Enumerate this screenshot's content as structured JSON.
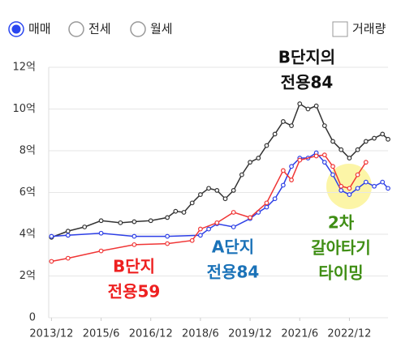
{
  "controls": {
    "radios": [
      {
        "label": "매매",
        "selected": true
      },
      {
        "label": "전세",
        "selected": false
      },
      {
        "label": "월세",
        "selected": false
      }
    ],
    "checkbox": {
      "label": "거래량",
      "checked": false
    }
  },
  "chart_data": {
    "type": "line",
    "xlim": [
      "2013/11",
      "2024/2"
    ],
    "xticks": [
      "2013/12",
      "2015/6",
      "2016/12",
      "2018/6",
      "2019/12",
      "2021/6",
      "2022/12"
    ],
    "ylim": [
      0,
      12
    ],
    "yticks": [
      0,
      {
        "value": 2,
        "label": "2억"
      },
      {
        "value": 4,
        "label": "4억"
      },
      {
        "value": 6,
        "label": "6억"
      },
      {
        "value": 8,
        "label": "8억"
      },
      {
        "value": 10,
        "label": "10억"
      },
      {
        "value": 12,
        "label": "12억"
      }
    ],
    "grid": true,
    "series": [
      {
        "name": "B단지의 전용84",
        "color": "#333333",
        "label_color": "#111111",
        "label_lines": [
          "B단지의",
          "전용84"
        ],
        "x": [
          "2013/12",
          "2014/6",
          "2014/12",
          "2015/6",
          "2016/1",
          "2016/6",
          "2016/12",
          "2017/6",
          "2017/9",
          "2017/12",
          "2018/3",
          "2018/6",
          "2018/9",
          "2018/12",
          "2019/3",
          "2019/6",
          "2019/9",
          "2019/12",
          "2020/3",
          "2020/6",
          "2020/9",
          "2020/12",
          "2021/3",
          "2021/6",
          "2021/9",
          "2021/12",
          "2022/3",
          "2022/6",
          "2022/9",
          "2022/12",
          "2023/3",
          "2023/6",
          "2023/9",
          "2023/12",
          "2024/2"
        ],
        "values": [
          3.85,
          4.15,
          4.35,
          4.65,
          4.55,
          4.6,
          4.65,
          4.8,
          5.1,
          5.05,
          5.5,
          5.9,
          6.2,
          6.1,
          5.7,
          6.1,
          6.85,
          7.45,
          7.65,
          8.25,
          8.8,
          9.4,
          9.2,
          10.25,
          10.0,
          10.15,
          9.2,
          8.45,
          8.05,
          7.65,
          8.05,
          8.45,
          8.6,
          8.8,
          8.55
        ]
      },
      {
        "name": "A단지 전용84",
        "color": "#2d3fe6",
        "label_color": "#1a72b8",
        "label_lines": [
          "A단지",
          "전용84"
        ],
        "x": [
          "2013/12",
          "2014/6",
          "2015/6",
          "2016/6",
          "2017/6",
          "2018/6",
          "2018/9",
          "2018/12",
          "2019/6",
          "2019/12",
          "2020/3",
          "2020/6",
          "2020/9",
          "2020/12",
          "2021/3",
          "2021/6",
          "2021/9",
          "2021/12",
          "2022/3",
          "2022/6",
          "2022/9",
          "2022/12",
          "2023/3",
          "2023/6",
          "2023/9",
          "2023/12",
          "2024/2"
        ],
        "values": [
          3.9,
          3.95,
          4.05,
          3.9,
          3.9,
          3.95,
          4.25,
          4.5,
          4.35,
          4.75,
          5.05,
          5.3,
          5.7,
          6.35,
          7.25,
          7.65,
          7.65,
          7.9,
          7.45,
          6.85,
          6.1,
          5.9,
          6.2,
          6.5,
          6.3,
          6.5,
          6.2
        ]
      },
      {
        "name": "B단지 전용59",
        "color": "#f03535",
        "label_color": "#ee2020",
        "label_lines": [
          "B단지",
          "전용59"
        ],
        "x": [
          "2013/12",
          "2014/6",
          "2015/6",
          "2016/6",
          "2017/6",
          "2018/3",
          "2018/6",
          "2018/12",
          "2019/6",
          "2019/12",
          "2020/6",
          "2020/12",
          "2021/3",
          "2021/6",
          "2021/12",
          "2022/3",
          "2022/6",
          "2022/9",
          "2022/12",
          "2023/3",
          "2023/6"
        ],
        "values": [
          2.7,
          2.85,
          3.2,
          3.5,
          3.55,
          3.7,
          4.25,
          4.55,
          5.05,
          4.8,
          5.5,
          7.05,
          6.6,
          7.55,
          7.75,
          7.8,
          7.25,
          6.3,
          6.2,
          6.85,
          7.45
        ]
      }
    ],
    "annotations": [
      {
        "lines": [
          "2차",
          "갈아타기",
          "타이밍"
        ],
        "color": "#3f8e14"
      }
    ]
  }
}
